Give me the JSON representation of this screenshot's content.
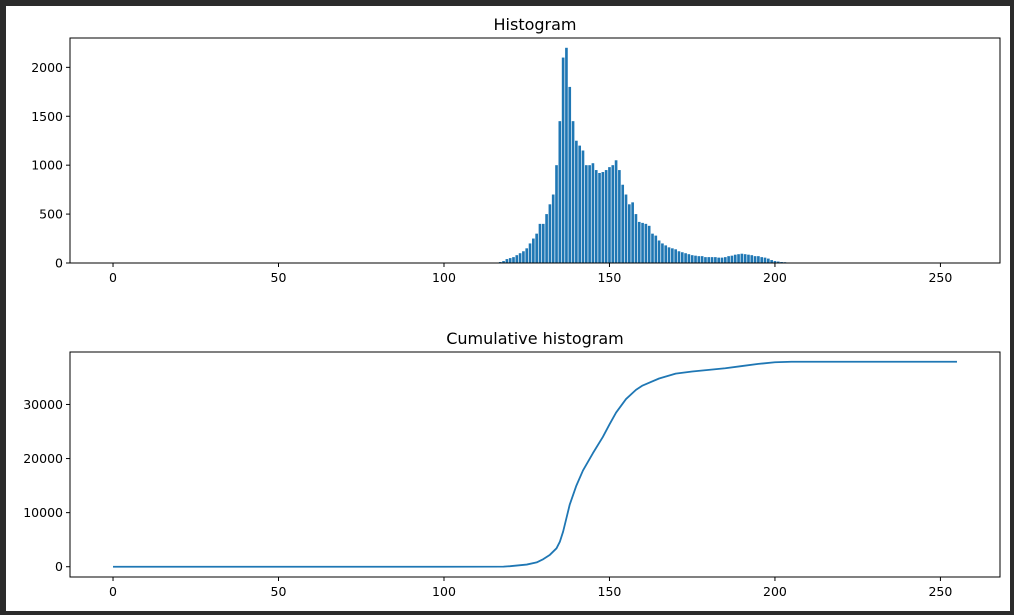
{
  "window": {
    "background": "#2b2b2b",
    "figure_background": "#ffffff"
  },
  "chart_data": [
    {
      "type": "bar",
      "title": "Histogram",
      "xlabel": "",
      "ylabel": "",
      "xlim": [
        -13,
        268
      ],
      "ylim": [
        0,
        2300
      ],
      "xticks": [
        0,
        50,
        100,
        150,
        200,
        250
      ],
      "yticks": [
        0,
        500,
        1000,
        1500,
        2000
      ],
      "color": "#1f77b4",
      "grid": false,
      "x": [
        117,
        118,
        119,
        120,
        121,
        122,
        123,
        124,
        125,
        126,
        127,
        128,
        129,
        130,
        131,
        132,
        133,
        134,
        135,
        136,
        137,
        138,
        139,
        140,
        141,
        142,
        143,
        144,
        145,
        146,
        147,
        148,
        149,
        150,
        151,
        152,
        153,
        154,
        155,
        156,
        157,
        158,
        159,
        160,
        161,
        162,
        163,
        164,
        165,
        166,
        167,
        168,
        169,
        170,
        171,
        172,
        173,
        174,
        175,
        176,
        177,
        178,
        179,
        180,
        181,
        182,
        183,
        184,
        185,
        186,
        187,
        188,
        189,
        190,
        191,
        192,
        193,
        194,
        195,
        196,
        197,
        198,
        199,
        200,
        201,
        202,
        203,
        204,
        205,
        206
      ],
      "values": [
        10,
        20,
        40,
        50,
        60,
        80,
        100,
        120,
        150,
        200,
        250,
        300,
        400,
        400,
        500,
        600,
        700,
        1000,
        1450,
        2100,
        2200,
        1800,
        1450,
        1250,
        1200,
        1150,
        1000,
        1000,
        1020,
        950,
        920,
        930,
        950,
        980,
        1000,
        1050,
        950,
        800,
        700,
        600,
        620,
        500,
        420,
        410,
        400,
        380,
        300,
        280,
        230,
        200,
        180,
        160,
        150,
        140,
        120,
        110,
        100,
        90,
        80,
        75,
        70,
        70,
        60,
        60,
        60,
        60,
        55,
        55,
        60,
        70,
        75,
        85,
        90,
        95,
        90,
        85,
        80,
        70,
        70,
        60,
        55,
        45,
        30,
        20,
        15,
        10,
        8,
        5,
        4,
        3
      ]
    },
    {
      "type": "line",
      "title": "Cumulative histogram",
      "xlabel": "",
      "ylabel": "",
      "xlim": [
        -13,
        268
      ],
      "ylim": [
        -1900,
        39700
      ],
      "xticks": [
        0,
        50,
        100,
        150,
        200,
        250
      ],
      "yticks": [
        0,
        10000,
        20000,
        30000
      ],
      "color": "#1f77b4",
      "grid": false,
      "x": [
        0,
        100,
        118,
        120,
        125,
        128,
        130,
        132,
        134,
        135,
        136,
        137,
        138,
        140,
        142,
        145,
        148,
        150,
        152,
        155,
        158,
        160,
        165,
        170,
        175,
        180,
        185,
        190,
        195,
        200,
        205,
        210,
        220,
        230,
        240,
        255
      ],
      "values": [
        0,
        0,
        20,
        100,
        400,
        800,
        1400,
        2200,
        3400,
        4600,
        6500,
        9000,
        11500,
        15000,
        17800,
        21000,
        24000,
        26300,
        28500,
        31000,
        32700,
        33500,
        34800,
        35700,
        36100,
        36400,
        36700,
        37100,
        37500,
        37800,
        37900,
        37900,
        37900,
        37900,
        37900,
        37900
      ]
    }
  ]
}
